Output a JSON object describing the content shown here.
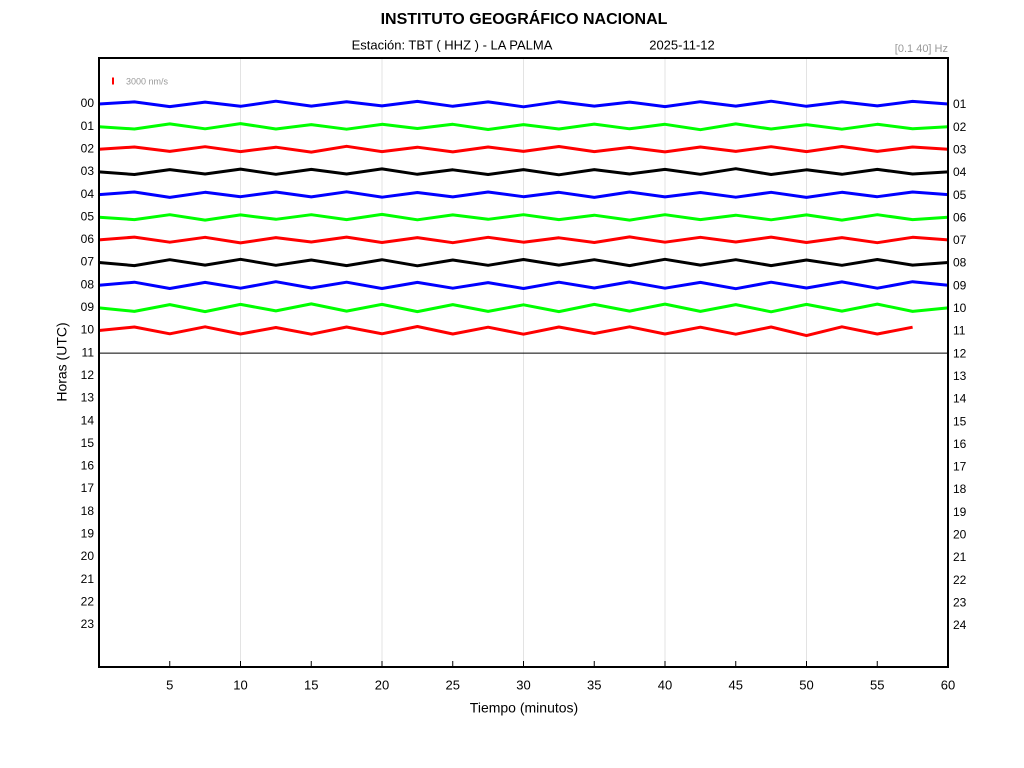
{
  "chart_data": {
    "type": "helicorder",
    "title": "INSTITUTO GEOGRÁFICO NACIONAL",
    "station": "Estación:  TBT ( HHZ ) - LA PALMA",
    "date": "2025-11-12",
    "filter": "[0.1 40] Hz",
    "scale_bar": {
      "value": 3000,
      "label": "3000 nm/s",
      "color": "#ff0000"
    },
    "xlabel": "Tiempo (minutos)",
    "ylabel": "Horas (UTC)",
    "xlim": [
      0,
      60
    ],
    "xticks": [
      5,
      10,
      15,
      20,
      25,
      30,
      35,
      40,
      45,
      50,
      55,
      60
    ],
    "xgrid": [
      10,
      20,
      30,
      40,
      50
    ],
    "rows_left": [
      "00",
      "01",
      "02",
      "03",
      "04",
      "05",
      "06",
      "07",
      "08",
      "09",
      "10",
      "11",
      "12",
      "13",
      "14",
      "15",
      "16",
      "17",
      "18",
      "19",
      "20",
      "21",
      "22",
      "23"
    ],
    "rows_right": [
      "01",
      "02",
      "03",
      "04",
      "05",
      "06",
      "07",
      "08",
      "09",
      "10",
      "11",
      "12",
      "13",
      "14",
      "15",
      "16",
      "17",
      "18",
      "19",
      "20",
      "21",
      "22",
      "23",
      "24"
    ],
    "x": [
      0,
      2.5,
      5,
      7.5,
      10,
      12.5,
      15,
      17.5,
      20,
      22.5,
      25,
      27.5,
      30,
      32.5,
      35,
      37.5,
      40,
      42.5,
      45,
      47.5,
      50,
      52.5,
      55,
      57.5,
      60
    ],
    "series": [
      {
        "color": "#0000ff",
        "values": [
          0,
          900,
          -1100,
          800,
          -1000,
          1200,
          -900,
          1000,
          -800,
          1100,
          -1000,
          900,
          -1200,
          1000,
          -900,
          800,
          -1100,
          1000,
          -900,
          1200,
          -1000,
          900,
          -800,
          1100,
          0
        ]
      },
      {
        "color": "#00ff00",
        "values": [
          0,
          -1000,
          1200,
          -900,
          1300,
          -1000,
          900,
          -1100,
          1000,
          -800,
          1000,
          -1200,
          900,
          -1000,
          1100,
          -900,
          1000,
          -1300,
          1200,
          -1000,
          900,
          -1100,
          1000,
          -900,
          0
        ]
      },
      {
        "color": "#ff0000",
        "values": [
          0,
          1000,
          -900,
          1100,
          -1000,
          900,
          -1200,
          1300,
          -1000,
          900,
          -1100,
          1000,
          -900,
          1200,
          -1000,
          800,
          -1100,
          1000,
          -900,
          1100,
          -1000,
          1200,
          -900,
          1000,
          0
        ]
      },
      {
        "color": "#000000",
        "values": [
          0,
          -1100,
          1000,
          -900,
          1200,
          -1000,
          1100,
          -900,
          1300,
          -1000,
          900,
          -1100,
          1000,
          -1200,
          1000,
          -900,
          1100,
          -1000,
          1400,
          -1100,
          900,
          -1000,
          1100,
          -900,
          0
        ]
      },
      {
        "color": "#0000ff",
        "values": [
          0,
          1100,
          -1200,
          1000,
          -900,
          1100,
          -1000,
          1200,
          -1100,
          900,
          -1000,
          1100,
          -900,
          1000,
          -1200,
          1100,
          -1000,
          900,
          -1100,
          1000,
          -1200,
          1000,
          -900,
          1100,
          0
        ]
      },
      {
        "color": "#00ff00",
        "values": [
          0,
          -1000,
          1100,
          -1200,
          1000,
          -900,
          1100,
          -1000,
          1200,
          -1100,
          1000,
          -900,
          1100,
          -1000,
          900,
          -1200,
          1100,
          -1000,
          900,
          -1100,
          1000,
          -1200,
          1100,
          -1000,
          0
        ]
      },
      {
        "color": "#ff0000",
        "values": [
          0,
          1200,
          -1000,
          1100,
          -1300,
          1000,
          -900,
          1200,
          -1100,
          1000,
          -1200,
          1100,
          -1000,
          900,
          -1100,
          1300,
          -1000,
          1100,
          -900,
          1200,
          -1100,
          1000,
          -1200,
          1100,
          0
        ]
      },
      {
        "color": "#000000",
        "values": [
          0,
          -1300,
          1200,
          -1100,
          1400,
          -1200,
          1100,
          -1300,
          1200,
          -1400,
          1100,
          -1200,
          1300,
          -1100,
          1200,
          -1300,
          1400,
          -1100,
          1200,
          -1300,
          1100,
          -1200,
          1300,
          -1100,
          0
        ]
      },
      {
        "color": "#0000ff",
        "values": [
          0,
          1300,
          -1400,
          1200,
          -1300,
          1500,
          -1200,
          1300,
          -1400,
          1200,
          -1300,
          1100,
          -1400,
          1300,
          -1200,
          1400,
          -1300,
          1200,
          -1500,
          1300,
          -1200,
          1400,
          -1300,
          1500,
          0
        ]
      },
      {
        "color": "#00ff00",
        "values": [
          0,
          -1500,
          1400,
          -1600,
          1500,
          -1300,
          1700,
          -1400,
          1500,
          -1600,
          1400,
          -1500,
          1300,
          -1600,
          1500,
          -1400,
          1600,
          -1500,
          1400,
          -1700,
          1500,
          -1400,
          1600,
          -1500,
          0
        ]
      },
      {
        "color": "#ff0000",
        "values": [
          0,
          1500,
          -1400,
          1600,
          -1500,
          1300,
          -1600,
          1500,
          -1400,
          1700,
          -1500,
          1400,
          -1600,
          1500,
          -1300,
          1600,
          -1500,
          1400,
          -1600,
          1500,
          -2200,
          1600,
          -1500,
          1400,
          null
        ]
      },
      {
        "color": "#000000",
        "values": [
          0,
          0,
          0,
          0,
          0,
          0,
          0,
          0,
          0,
          0,
          0,
          0,
          0,
          0,
          0,
          0,
          0,
          0,
          0,
          0,
          0,
          0,
          0,
          0,
          0
        ]
      }
    ]
  }
}
